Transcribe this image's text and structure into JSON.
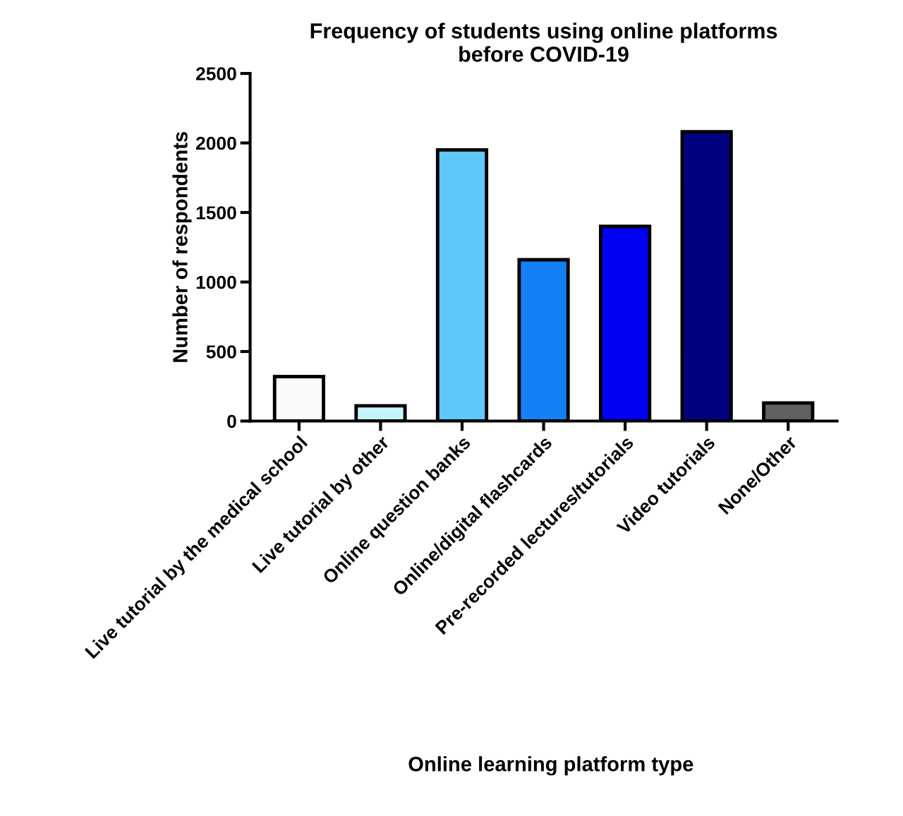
{
  "chart_data": {
    "type": "bar",
    "title": "Frequency of students using online platforms\nbefore COVID-19",
    "xlabel": "Online learning platform type",
    "ylabel": "Number of respondents",
    "categories": [
      "Live tutorial by the medical school",
      "Live tutorial by other",
      "Online question banks",
      "Online/digital flashcards",
      "Pre-recorded lectures/tutorials",
      "Video tutorials",
      "None/Other"
    ],
    "values": [
      320,
      110,
      1950,
      1160,
      1400,
      2080,
      130
    ],
    "colors": [
      "#fafafa",
      "#c4f5fc",
      "#5ec8f8",
      "#1380f5",
      "#0000f5",
      "#000080",
      "#606060"
    ],
    "ylim": [
      0,
      2500
    ],
    "yticks": [
      0,
      500,
      1000,
      1500,
      2000,
      2500
    ],
    "grid": false,
    "legend": false
  }
}
